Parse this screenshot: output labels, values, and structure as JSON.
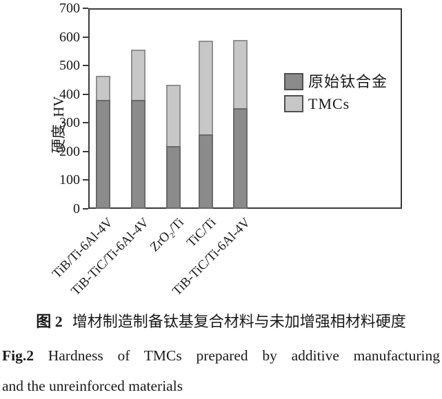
{
  "figure": {
    "caption_zh_label": "图 2",
    "caption_zh_text": "增材制造制备钛基复合材料与未加增强相材料硬度",
    "caption_en_label": "Fig.2",
    "caption_en_text": "Hardness of TMCs prepared by additive manufacturing",
    "caption_en_text2": "and the unreinforced materials"
  },
  "chart_data": {
    "type": "bar",
    "stacked": true,
    "title": "",
    "xlabel": "",
    "ylabel": "硬度, HV",
    "ylim": [
      0,
      700
    ],
    "yticks": [
      0,
      100,
      200,
      300,
      400,
      500,
      600,
      700
    ],
    "grid": false,
    "legend_position": "inside-right",
    "categories": [
      "TiB/Ti-6Al-4V",
      "TiB-TiC/Ti-6Al-4V",
      "ZrO₂/Ti",
      "TiC/Ti",
      "TiB-TiC/Ti-6Al-4V"
    ],
    "series": [
      {
        "name": "原始钛合金",
        "color": "#8b8b8b",
        "values": [
          380,
          380,
          220,
          260,
          352
        ]
      },
      {
        "name": "TMCs",
        "color": "#c7c7c7",
        "values": [
          85,
          175,
          212,
          328,
          238
        ]
      }
    ],
    "stack_totals": [
      465,
      555,
      432,
      588,
      590
    ],
    "axis_color": "#3a3a3a"
  }
}
